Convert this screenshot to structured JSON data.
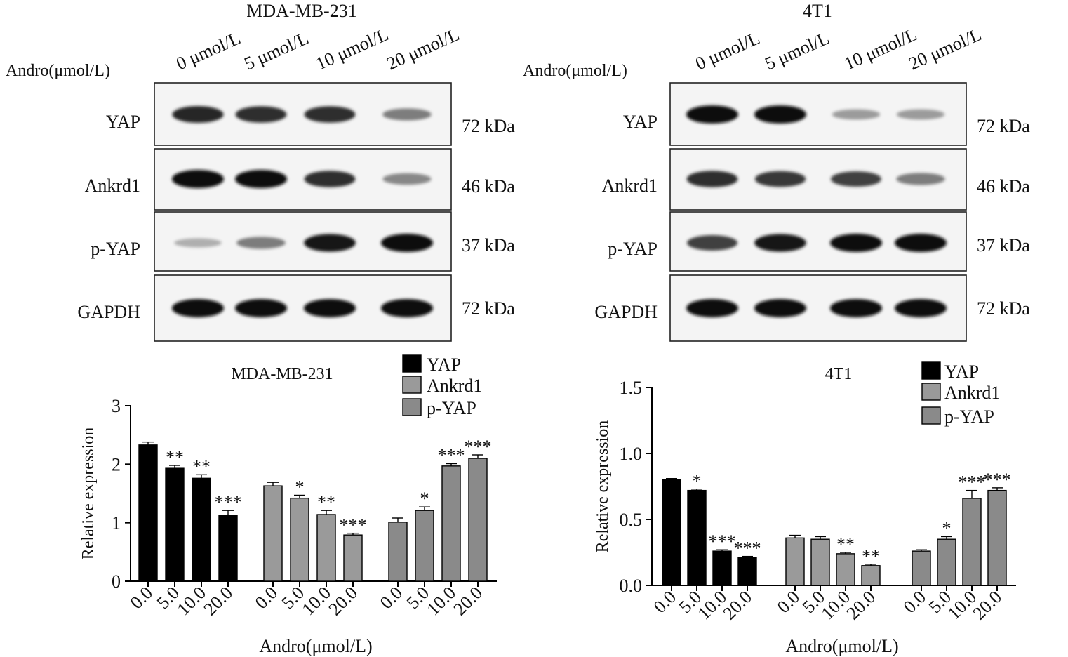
{
  "blot_panels": [
    {
      "title": "MDA-MB-231",
      "treatment_label": "Andro(μmol/L)",
      "lanes": [
        "0 μmol/L",
        "5 μmol/L",
        "10 μmol/L",
        "20 μmol/L"
      ],
      "rows": [
        {
          "protein": "YAP",
          "size": "72 kDa",
          "intensity": [
            0.88,
            0.85,
            0.85,
            0.45
          ]
        },
        {
          "protein": "Ankrd1",
          "size": "46 kDa",
          "intensity": [
            1.0,
            1.0,
            0.85,
            0.4
          ]
        },
        {
          "protein": "p-YAP",
          "size": "37 kDa",
          "intensity": [
            0.2,
            0.45,
            0.95,
            1.0
          ]
        },
        {
          "protein": "GAPDH",
          "size": "72 kDa",
          "intensity": [
            1.0,
            1.0,
            1.0,
            1.0
          ]
        }
      ]
    },
    {
      "title": "4T1",
      "treatment_label": "Andro(μmol/L)",
      "lanes": [
        "0 μmol/L",
        "5 μmol/L",
        "10 μmol/L",
        "20 μmol/L"
      ],
      "rows": [
        {
          "protein": "YAP",
          "size": "72 kDa",
          "intensity": [
            1.0,
            1.0,
            0.3,
            0.3
          ]
        },
        {
          "protein": "Ankrd1",
          "size": "46 kDa",
          "intensity": [
            0.85,
            0.8,
            0.75,
            0.45
          ]
        },
        {
          "protein": "p-YAP",
          "size": "37 kDa",
          "intensity": [
            0.75,
            0.95,
            1.0,
            1.0
          ]
        },
        {
          "protein": "GAPDH",
          "size": "72 kDa",
          "intensity": [
            1.0,
            1.0,
            1.0,
            1.0
          ]
        }
      ]
    }
  ],
  "chart_data": [
    {
      "type": "bar",
      "title": "MDA-MB-231",
      "xlabel": "Andro(μmol/L)",
      "ylabel": "Relative expression",
      "ylim": [
        0,
        3
      ],
      "yticks": [
        "0",
        "1",
        "2",
        "3"
      ],
      "categories": [
        "0.0",
        "5.0",
        "10.0",
        "20.0"
      ],
      "legend_position": "top-right",
      "series": [
        {
          "name": "YAP",
          "color": "#000000",
          "values": [
            2.33,
            1.93,
            1.76,
            1.13
          ],
          "errors": [
            0.05,
            0.05,
            0.06,
            0.08
          ],
          "significance": [
            "",
            "**",
            "**",
            "***"
          ]
        },
        {
          "name": "Ankrd1",
          "color": "#9a9a9a",
          "values": [
            1.63,
            1.42,
            1.14,
            0.79
          ],
          "errors": [
            0.06,
            0.05,
            0.07,
            0.03
          ],
          "significance": [
            "",
            "*",
            "**",
            "***"
          ]
        },
        {
          "name": "p-YAP",
          "color": "#8a8a8a",
          "values": [
            1.01,
            1.21,
            1.97,
            2.1
          ],
          "errors": [
            0.07,
            0.06,
            0.04,
            0.06
          ],
          "significance": [
            "",
            "*",
            "***",
            "***"
          ]
        }
      ]
    },
    {
      "type": "bar",
      "title": "4T1",
      "xlabel": "Andro(μmol/L)",
      "ylabel": "Relative expression",
      "ylim": [
        0,
        1.5
      ],
      "yticks": [
        "0.0",
        "0.5",
        "1.0",
        "1.5"
      ],
      "categories": [
        "0.0",
        "5.0",
        "10.0",
        "20.0"
      ],
      "legend_position": "top-right",
      "series": [
        {
          "name": "YAP",
          "color": "#000000",
          "values": [
            0.8,
            0.72,
            0.26,
            0.21
          ],
          "errors": [
            0.01,
            0.01,
            0.01,
            0.01
          ],
          "significance": [
            "",
            "*",
            "***",
            "***"
          ]
        },
        {
          "name": "Ankrd1",
          "color": "#9a9a9a",
          "values": [
            0.36,
            0.35,
            0.24,
            0.15
          ],
          "errors": [
            0.02,
            0.02,
            0.01,
            0.01
          ],
          "significance": [
            "",
            "",
            "**",
            "**"
          ]
        },
        {
          "name": "p-YAP",
          "color": "#8a8a8a",
          "values": [
            0.26,
            0.35,
            0.66,
            0.72
          ],
          "errors": [
            0.01,
            0.02,
            0.06,
            0.02
          ],
          "significance": [
            "",
            "*",
            "***",
            "***"
          ]
        }
      ]
    }
  ]
}
